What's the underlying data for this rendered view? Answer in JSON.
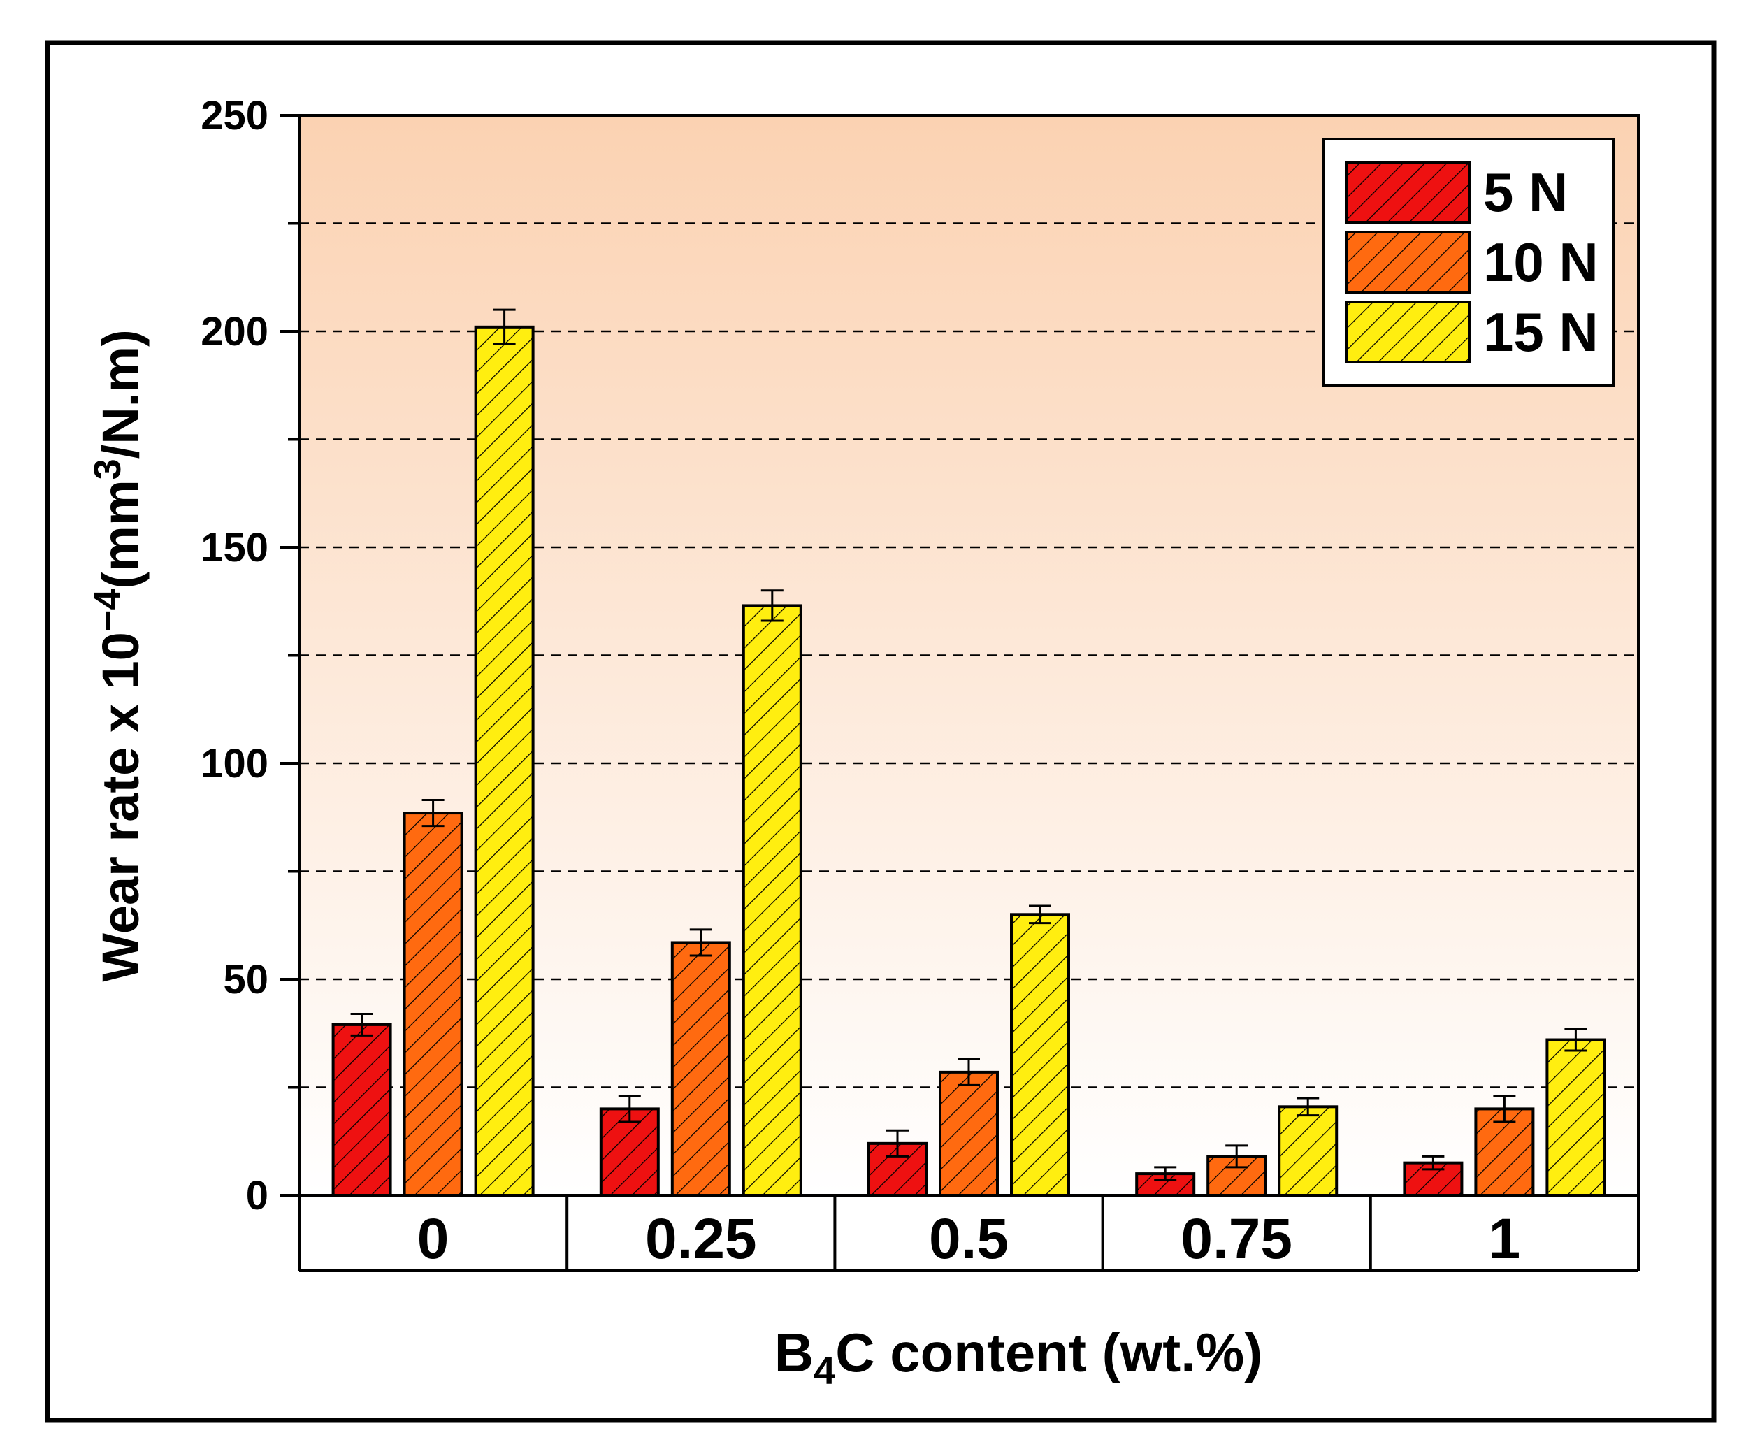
{
  "chart_data": {
    "type": "bar",
    "title": "",
    "categories": [
      "0",
      "0.25",
      "0.5",
      "0.75",
      "1"
    ],
    "xlabel": {
      "main": "B",
      "sub": "4",
      "rest": "C content (wt.%)"
    },
    "ylabel": {
      "main": "Wear rate x 10",
      "sup1": "−4",
      "mid": "(mm",
      "sup2": "3",
      "end": "/N.m)"
    },
    "ylim": [
      0,
      250
    ],
    "yticks": [
      "0",
      "50",
      "100",
      "150",
      "200",
      "250"
    ],
    "ytick_values": [
      0,
      50,
      100,
      150,
      200,
      250
    ],
    "grid_values": [
      25,
      50,
      75,
      100,
      125,
      150,
      175,
      200,
      225
    ],
    "grid": "dashed-horizontal",
    "legend_position": "top-right",
    "series": [
      {
        "name": "5 N",
        "color": "#ee1111",
        "values": [
          39.5,
          20,
          12,
          5,
          7.5
        ],
        "errors": [
          2.5,
          3,
          3,
          1.5,
          1.5
        ]
      },
      {
        "name": "10 N",
        "color": "#ff6a10",
        "values": [
          88.5,
          58.5,
          28.5,
          9,
          20
        ],
        "errors": [
          3,
          3,
          3,
          2.5,
          3
        ]
      },
      {
        "name": "15 N",
        "color": "#ffee10",
        "values": [
          201,
          136.5,
          65,
          20.5,
          36
        ],
        "errors": [
          4,
          3.5,
          2,
          2,
          2.5
        ]
      }
    ]
  }
}
